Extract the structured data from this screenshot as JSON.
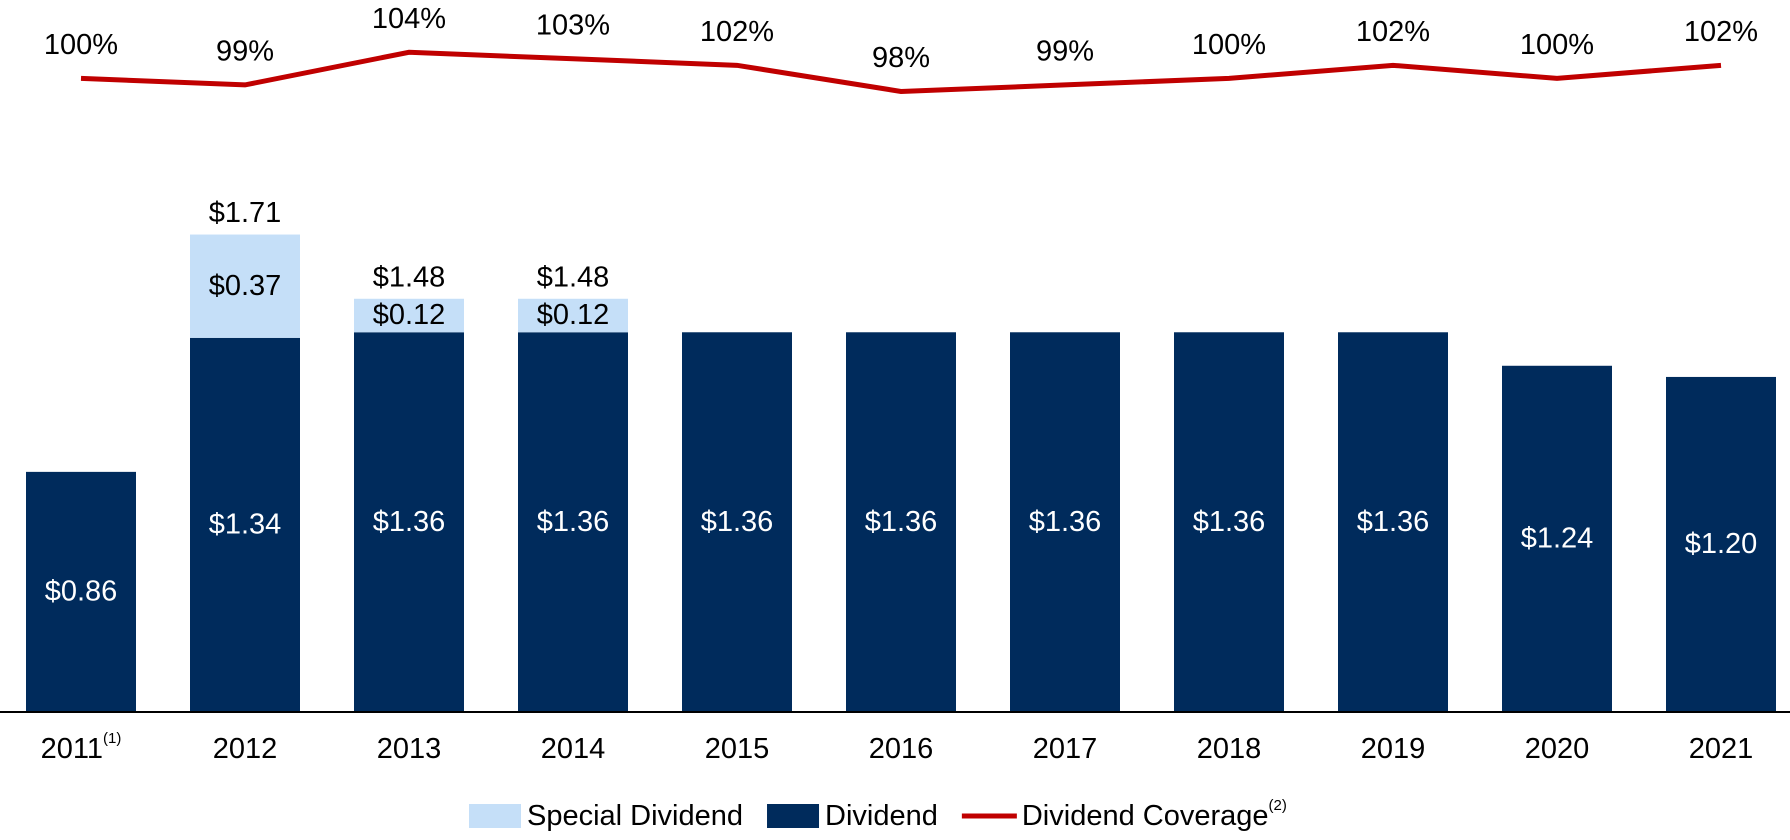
{
  "chart_data": {
    "type": "bar",
    "categories": [
      "2011",
      "2012",
      "2013",
      "2014",
      "2015",
      "2016",
      "2017",
      "2018",
      "2019",
      "2020",
      "2021"
    ],
    "category_notes": [
      "(1)",
      null,
      null,
      null,
      null,
      null,
      null,
      null,
      null,
      null,
      null
    ],
    "stacked": true,
    "ylim": [
      0,
      2.55
    ],
    "y2lim": [
      3,
      112
    ],
    "series": [
      {
        "name": "Special Dividend",
        "color": "#c5dff8",
        "values": [
          null,
          0.37,
          0.12,
          0.12,
          null,
          null,
          null,
          null,
          null,
          null,
          null
        ],
        "value_labels": [
          null,
          "$0.37",
          "$0.12",
          "$0.12",
          null,
          null,
          null,
          null,
          null,
          null,
          null
        ]
      },
      {
        "name": "Dividend",
        "color": "#002b5c",
        "values": [
          0.86,
          1.34,
          1.36,
          1.36,
          1.36,
          1.36,
          1.36,
          1.36,
          1.36,
          1.24,
          1.2
        ],
        "value_labels": [
          "$0.86",
          "$1.34",
          "$1.36",
          "$1.36",
          "$1.36",
          "$1.36",
          "$1.36",
          "$1.36",
          "$1.36",
          "$1.24",
          "$1.20"
        ]
      },
      {
        "name": "Dividend Coverage",
        "name_note": "(2)",
        "type": "line",
        "axis": "y2",
        "color": "#c00000",
        "values": [
          100,
          99,
          104,
          103,
          102,
          98,
          99,
          100,
          102,
          100,
          102
        ],
        "value_labels": [
          "100%",
          "99%",
          "104%",
          "103%",
          "102%",
          "98%",
          "99%",
          "100%",
          "102%",
          "100%",
          "102%"
        ]
      }
    ],
    "total_labels": [
      null,
      "$1.71",
      "$1.48",
      "$1.48",
      null,
      null,
      null,
      null,
      null,
      null,
      null
    ],
    "legend": "bottom"
  }
}
